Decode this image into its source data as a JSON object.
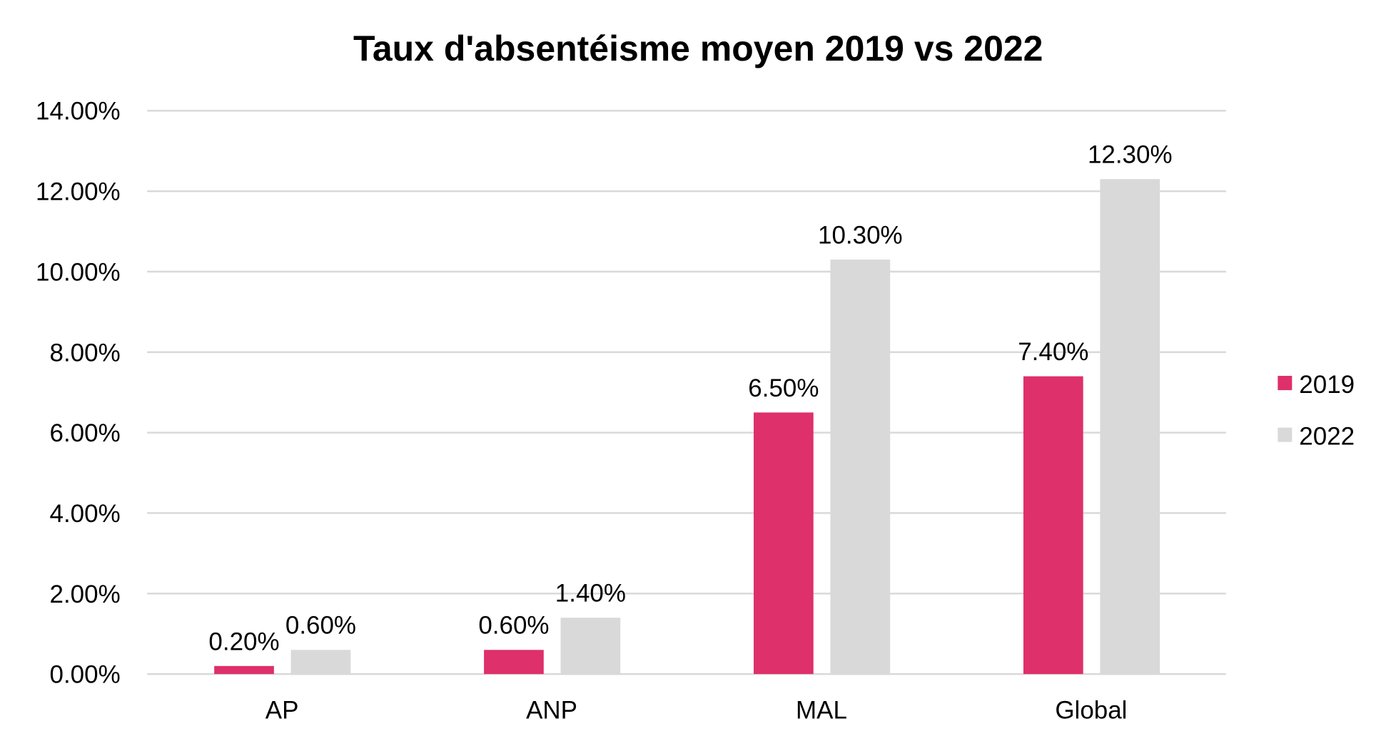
{
  "chart_data": {
    "type": "bar",
    "title": "Taux d'absentéisme moyen 2019 vs 2022",
    "xlabel": "",
    "ylabel": "",
    "categories": [
      "AP",
      "ANP",
      "MAL",
      "Global"
    ],
    "series": [
      {
        "name": "2019",
        "color": "#DE306B",
        "values": [
          0.2,
          0.6,
          6.5,
          7.4
        ],
        "labels": [
          "0.20%",
          "0.60%",
          "6.50%",
          "7.40%"
        ]
      },
      {
        "name": "2022",
        "color": "#D9D9D9",
        "values": [
          0.6,
          1.4,
          10.3,
          12.3
        ],
        "labels": [
          "0.60%",
          "1.40%",
          "10.30%",
          "12.30%"
        ]
      }
    ],
    "ylim": [
      0,
      14
    ],
    "yticks": [
      0,
      2,
      4,
      6,
      8,
      10,
      12,
      14
    ],
    "ytick_labels": [
      "0.00%",
      "2.00%",
      "4.00%",
      "6.00%",
      "8.00%",
      "10.00%",
      "12.00%",
      "14.00%"
    ],
    "grid": true,
    "legend_position": "right"
  }
}
